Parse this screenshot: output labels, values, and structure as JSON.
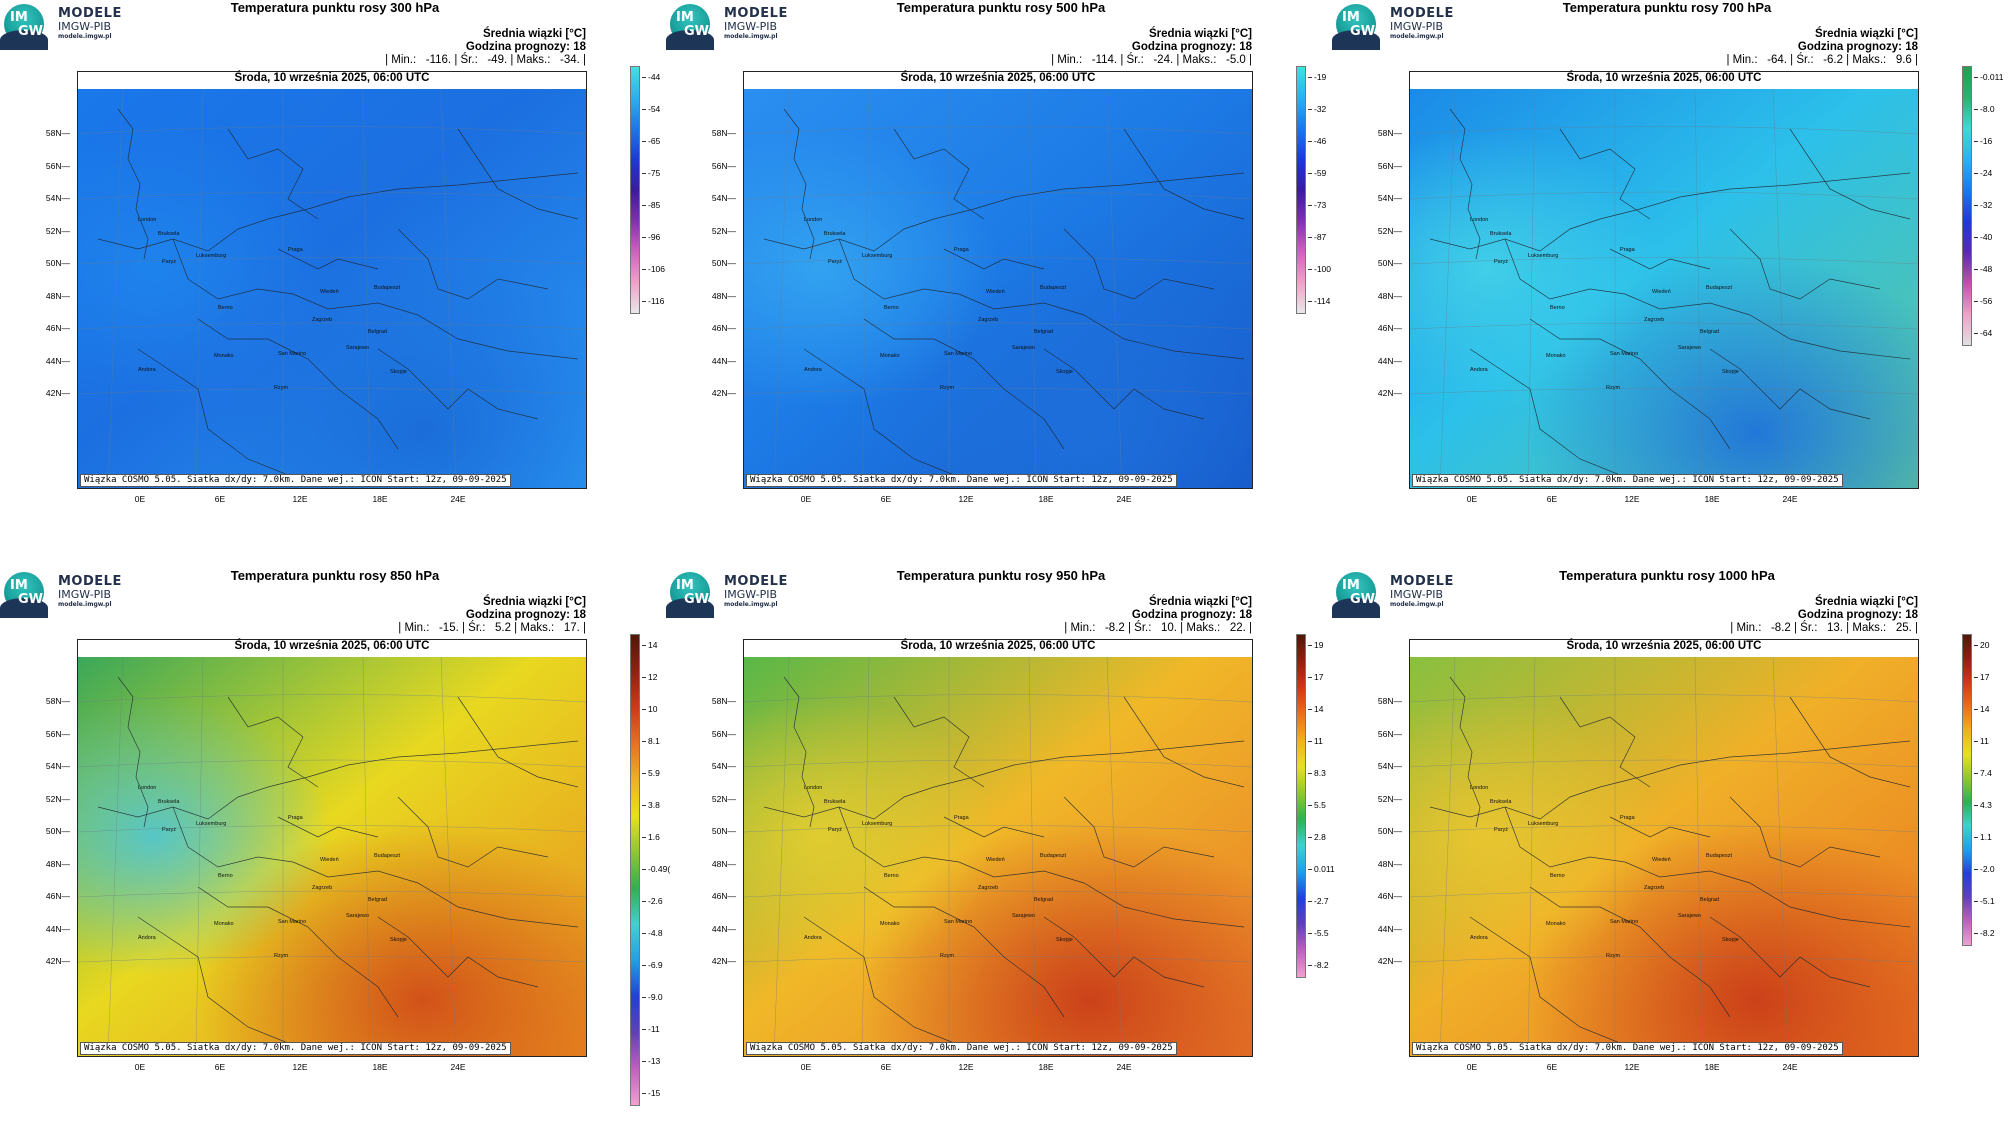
{
  "logo": {
    "badge_line1": "IM",
    "badge_line2": "GW",
    "line1": "MODELE",
    "line2": "IMGW-PIB",
    "line3": "modele.imgw.pl"
  },
  "common": {
    "date_line": "Środa, 10 września 2025, 06:00 UTC",
    "info_title": "Średnia wiązki [°C]",
    "info_hour": "Godzina prognozy: 18",
    "credit": "Wiązka COSMO 5.05. Siatka dx/dy: 7.0km. Dane wej.: ICON Start: 12z, 09-09-2025",
    "lat_labels": [
      "58N",
      "56N",
      "54N",
      "52N",
      "50N",
      "48N",
      "46N",
      "44N",
      "42N"
    ],
    "lon_labels": [
      "0E",
      "6E",
      "12E",
      "18E",
      "24E"
    ],
    "cities": [
      "London",
      "Bruksela",
      "Luksemburg",
      "Paryż",
      "Praga",
      "Wiedeń",
      "Budapeszt",
      "Berno",
      "Zagrzeb",
      "Belgrad",
      "Sarajewo",
      "San Marino",
      "Monako",
      "Andora",
      "Rzym",
      "Skopje"
    ]
  },
  "panels": [
    {
      "title": "Temperatura punktu rosy 300 hPa",
      "stats": "| Min.:   -116. | Śr.:   -49. | Maks.:   -34. |",
      "colorbar": [
        "-44",
        "-54",
        "-65",
        "-75",
        "-85",
        "-96",
        "-106",
        "-116"
      ],
      "palette": "cold",
      "field_colors": [
        "#1c6fe0",
        "#1a78ea",
        "#1f86ee",
        "#2a97f2",
        "#1a6bd8"
      ]
    },
    {
      "title": "Temperatura punktu rosy 500 hPa",
      "stats": "| Min.:   -114. | Śr.:   -24. | Maks.:   -5.0 |",
      "colorbar": [
        "-19",
        "-32",
        "-46",
        "-59",
        "-73",
        "-87",
        "-100",
        "-114"
      ],
      "palette": "cold",
      "field_colors": [
        "#1d7be6",
        "#2a8ff0",
        "#36a8f2",
        "#1658c8",
        "#1e6fdb"
      ]
    },
    {
      "title": "Temperatura punktu rosy 700 hPa",
      "stats": "| Min.:   -64. | Śr.:   -6.2 | Maks.:   9.6 |",
      "colorbar": [
        "-0.011",
        "-8.0",
        "-16",
        "-24",
        "-32",
        "-40",
        "-48",
        "-56",
        "-64"
      ],
      "palette": "mid",
      "field_colors": [
        "#2cc0ea",
        "#1b8ae8",
        "#45d4e8",
        "#5cc59a",
        "#1e6fdb"
      ]
    },
    {
      "title": "Temperatura punktu rosy 850 hPa",
      "stats": "| Min.:   -15. | Śr.:   5.2 | Maks.:   17. |",
      "colorbar": [
        "14",
        "12",
        "10",
        "8.1",
        "5.9",
        "3.8",
        "1.6",
        "-0.49(",
        "-2.6",
        "-4.8",
        "-6.9",
        "-9.0",
        "-11",
        "-13",
        "-15"
      ],
      "palette": "warm",
      "field_colors": [
        "#e8d820",
        "#3aa85a",
        "#48c6e0",
        "#e88a20",
        "#d04818"
      ]
    },
    {
      "title": "Temperatura punktu rosy 950 hPa",
      "stats": "| Min.:   -8.2 | Śr.:   10. | Maks.:   22. |",
      "colorbar": [
        "19",
        "17",
        "14",
        "11",
        "8.3",
        "5.5",
        "2.8",
        "0.011",
        "-2.7",
        "-5.5",
        "-8.2"
      ],
      "palette": "warm",
      "field_colors": [
        "#f0b828",
        "#58b848",
        "#e6d030",
        "#e87828",
        "#c83818"
      ]
    },
    {
      "title": "Temperatura punktu rosy 1000 hPa",
      "stats": "| Min.:   -8.2 | Śr.:   13. | Maks.:   25. |",
      "colorbar": [
        "20",
        "17",
        "14",
        "11",
        "7.4",
        "4.3",
        "1.1",
        "-2.0",
        "-5.1",
        "-8.2"
      ],
      "palette": "warm",
      "field_colors": [
        "#f0b028",
        "#88c040",
        "#ecc830",
        "#e87020",
        "#c83818"
      ]
    }
  ]
}
